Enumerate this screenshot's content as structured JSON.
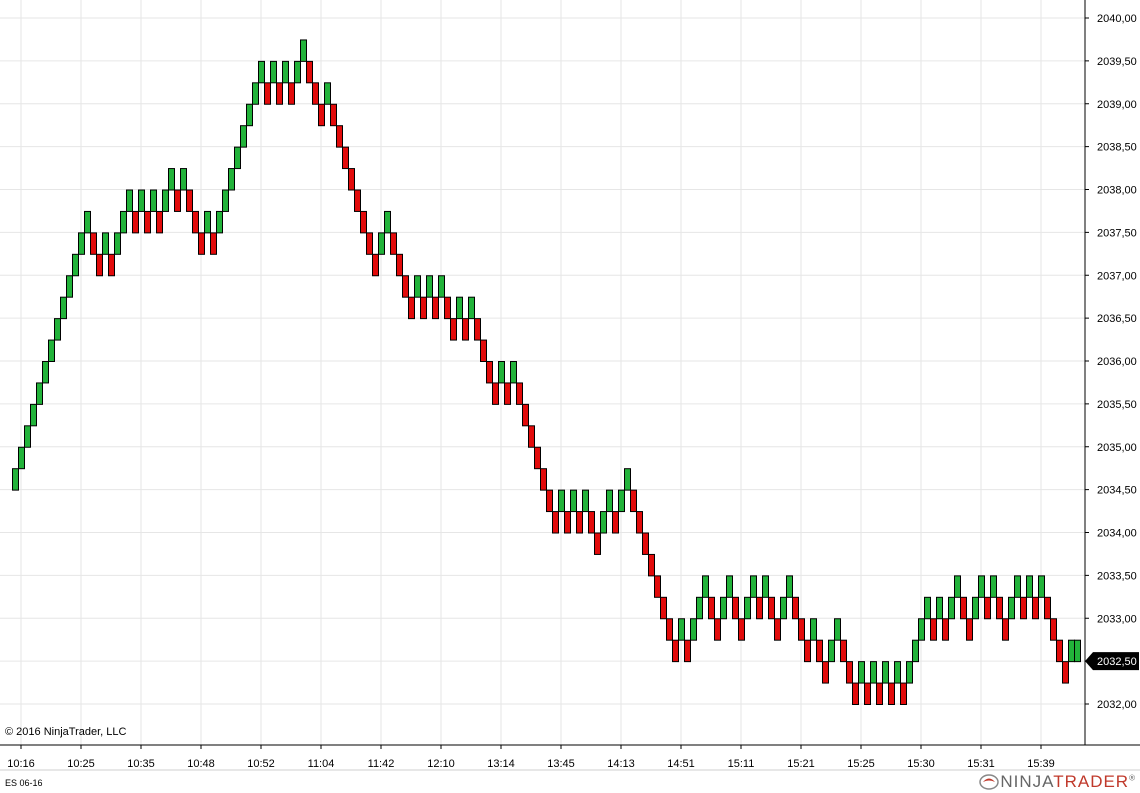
{
  "chart_data": {
    "type": "renko",
    "instrument": "ES 06-16",
    "box_size": 0.25,
    "ylim": [
      2031.75,
      2040.1
    ],
    "y_ticks": [
      "2032,00",
      "2032,50",
      "2033,00",
      "2033,50",
      "2034,00",
      "2034,50",
      "2035,00",
      "2035,50",
      "2036,00",
      "2036,50",
      "2037,00",
      "2037,50",
      "2038,00",
      "2038,50",
      "2039,00",
      "2039,50",
      "2040,00"
    ],
    "y_tick_values": [
      2032.0,
      2032.5,
      2033.0,
      2033.5,
      2034.0,
      2034.5,
      2035.0,
      2035.5,
      2036.0,
      2036.5,
      2037.0,
      2037.5,
      2038.0,
      2038.5,
      2039.0,
      2039.5,
      2040.0
    ],
    "x_labels": [
      {
        "label": "10:16",
        "index": 1
      },
      {
        "label": "10:25",
        "index": 11
      },
      {
        "label": "10:35",
        "index": 21
      },
      {
        "label": "10:48",
        "index": 31
      },
      {
        "label": "10:52",
        "index": 41
      },
      {
        "label": "11:04",
        "index": 51
      },
      {
        "label": "11:42",
        "index": 61
      },
      {
        "label": "12:10",
        "index": 71
      },
      {
        "label": "13:14",
        "index": 81
      },
      {
        "label": "13:45",
        "index": 91
      },
      {
        "label": "14:13",
        "index": 101
      },
      {
        "label": "14:51",
        "index": 111
      },
      {
        "label": "15:11",
        "index": 121
      },
      {
        "label": "15:21",
        "index": 131
      },
      {
        "label": "15:25",
        "index": 141
      },
      {
        "label": "15:30",
        "index": 151
      },
      {
        "label": "15:31",
        "index": 161
      },
      {
        "label": "15:39",
        "index": 171
      }
    ],
    "last_price": "2032,50",
    "colors": {
      "up": "#22b33a",
      "down": "#e20b0b",
      "outline": "#000000",
      "grid": "#e6e6e6",
      "price_marker": "#000000"
    },
    "bricks": [
      {
        "low": 2034.5,
        "high": 2034.75
      },
      {
        "low": 2034.75,
        "high": 2035.0
      },
      {
        "low": 2035.0,
        "high": 2035.25
      },
      {
        "low": 2035.25,
        "high": 2035.5
      },
      {
        "low": 2035.5,
        "high": 2035.75
      },
      {
        "low": 2035.75,
        "high": 2036.0
      },
      {
        "low": 2036.0,
        "high": 2036.25
      },
      {
        "low": 2036.25,
        "high": 2036.5
      },
      {
        "low": 2036.5,
        "high": 2036.75
      },
      {
        "low": 2036.75,
        "high": 2037.0
      },
      {
        "low": 2037.0,
        "high": 2037.25
      },
      {
        "low": 2037.25,
        "high": 2037.5
      },
      {
        "low": 2037.5,
        "high": 2037.75
      },
      {
        "low": 2037.25,
        "high": 2037.5
      },
      {
        "low": 2037.0,
        "high": 2037.25
      },
      {
        "low": 2037.25,
        "high": 2037.5
      },
      {
        "low": 2037.0,
        "high": 2037.25
      },
      {
        "low": 2037.25,
        "high": 2037.5
      },
      {
        "low": 2037.5,
        "high": 2037.75
      },
      {
        "low": 2037.75,
        "high": 2038.0
      },
      {
        "low": 2037.5,
        "high": 2037.75
      },
      {
        "low": 2037.75,
        "high": 2038.0
      },
      {
        "low": 2037.5,
        "high": 2037.75
      },
      {
        "low": 2037.75,
        "high": 2038.0
      },
      {
        "low": 2037.5,
        "high": 2037.75
      },
      {
        "low": 2037.75,
        "high": 2038.0
      },
      {
        "low": 2038.0,
        "high": 2038.25
      },
      {
        "low": 2037.75,
        "high": 2038.0
      },
      {
        "low": 2038.0,
        "high": 2038.25
      },
      {
        "low": 2037.75,
        "high": 2038.0
      },
      {
        "low": 2037.5,
        "high": 2037.75
      },
      {
        "low": 2037.25,
        "high": 2037.5
      },
      {
        "low": 2037.5,
        "high": 2037.75
      },
      {
        "low": 2037.25,
        "high": 2037.5
      },
      {
        "low": 2037.5,
        "high": 2037.75
      },
      {
        "low": 2037.75,
        "high": 2038.0
      },
      {
        "low": 2038.0,
        "high": 2038.25
      },
      {
        "low": 2038.25,
        "high": 2038.5
      },
      {
        "low": 2038.5,
        "high": 2038.75
      },
      {
        "low": 2038.75,
        "high": 2039.0
      },
      {
        "low": 2039.0,
        "high": 2039.25
      },
      {
        "low": 2039.25,
        "high": 2039.5
      },
      {
        "low": 2039.0,
        "high": 2039.25
      },
      {
        "low": 2039.25,
        "high": 2039.5
      },
      {
        "low": 2039.0,
        "high": 2039.25
      },
      {
        "low": 2039.25,
        "high": 2039.5
      },
      {
        "low": 2039.0,
        "high": 2039.25
      },
      {
        "low": 2039.25,
        "high": 2039.5
      },
      {
        "low": 2039.5,
        "high": 2039.75
      },
      {
        "low": 2039.25,
        "high": 2039.5
      },
      {
        "low": 2039.0,
        "high": 2039.25
      },
      {
        "low": 2038.75,
        "high": 2039.0
      },
      {
        "low": 2039.0,
        "high": 2039.25
      },
      {
        "low": 2038.75,
        "high": 2039.0
      },
      {
        "low": 2038.5,
        "high": 2038.75
      },
      {
        "low": 2038.25,
        "high": 2038.5
      },
      {
        "low": 2038.0,
        "high": 2038.25
      },
      {
        "low": 2037.75,
        "high": 2038.0
      },
      {
        "low": 2037.5,
        "high": 2037.75
      },
      {
        "low": 2037.25,
        "high": 2037.5
      },
      {
        "low": 2037.0,
        "high": 2037.25
      },
      {
        "low": 2037.25,
        "high": 2037.5
      },
      {
        "low": 2037.5,
        "high": 2037.75
      },
      {
        "low": 2037.25,
        "high": 2037.5
      },
      {
        "low": 2037.0,
        "high": 2037.25
      },
      {
        "low": 2036.75,
        "high": 2037.0
      },
      {
        "low": 2036.5,
        "high": 2036.75
      },
      {
        "low": 2036.75,
        "high": 2037.0
      },
      {
        "low": 2036.5,
        "high": 2036.75
      },
      {
        "low": 2036.75,
        "high": 2037.0
      },
      {
        "low": 2036.5,
        "high": 2036.75
      },
      {
        "low": 2036.75,
        "high": 2037.0
      },
      {
        "low": 2036.5,
        "high": 2036.75
      },
      {
        "low": 2036.25,
        "high": 2036.5
      },
      {
        "low": 2036.5,
        "high": 2036.75
      },
      {
        "low": 2036.25,
        "high": 2036.5
      },
      {
        "low": 2036.5,
        "high": 2036.75
      },
      {
        "low": 2036.25,
        "high": 2036.5
      },
      {
        "low": 2036.0,
        "high": 2036.25
      },
      {
        "low": 2035.75,
        "high": 2036.0
      },
      {
        "low": 2035.5,
        "high": 2035.75
      },
      {
        "low": 2035.75,
        "high": 2036.0
      },
      {
        "low": 2035.5,
        "high": 2035.75
      },
      {
        "low": 2035.75,
        "high": 2036.0
      },
      {
        "low": 2035.5,
        "high": 2035.75
      },
      {
        "low": 2035.25,
        "high": 2035.5
      },
      {
        "low": 2035.0,
        "high": 2035.25
      },
      {
        "low": 2034.75,
        "high": 2035.0
      },
      {
        "low": 2034.5,
        "high": 2034.75
      },
      {
        "low": 2034.25,
        "high": 2034.5
      },
      {
        "low": 2034.0,
        "high": 2034.25
      },
      {
        "low": 2034.25,
        "high": 2034.5
      },
      {
        "low": 2034.0,
        "high": 2034.25
      },
      {
        "low": 2034.25,
        "high": 2034.5
      },
      {
        "low": 2034.0,
        "high": 2034.25
      },
      {
        "low": 2034.25,
        "high": 2034.5
      },
      {
        "low": 2034.0,
        "high": 2034.25
      },
      {
        "low": 2033.75,
        "high": 2034.0
      },
      {
        "low": 2034.0,
        "high": 2034.25
      },
      {
        "low": 2034.25,
        "high": 2034.5
      },
      {
        "low": 2034.0,
        "high": 2034.25
      },
      {
        "low": 2034.25,
        "high": 2034.5
      },
      {
        "low": 2034.5,
        "high": 2034.75
      },
      {
        "low": 2034.25,
        "high": 2034.5
      },
      {
        "low": 2034.0,
        "high": 2034.25
      },
      {
        "low": 2033.75,
        "high": 2034.0
      },
      {
        "low": 2033.5,
        "high": 2033.75
      },
      {
        "low": 2033.25,
        "high": 2033.5
      },
      {
        "low": 2033.0,
        "high": 2033.25
      },
      {
        "low": 2032.75,
        "high": 2033.0
      },
      {
        "low": 2032.5,
        "high": 2032.75
      },
      {
        "low": 2032.75,
        "high": 2033.0
      },
      {
        "low": 2032.5,
        "high": 2032.75
      },
      {
        "low": 2032.75,
        "high": 2033.0
      },
      {
        "low": 2033.0,
        "high": 2033.25
      },
      {
        "low": 2033.25,
        "high": 2033.5
      },
      {
        "low": 2033.0,
        "high": 2033.25
      },
      {
        "low": 2032.75,
        "high": 2033.0
      },
      {
        "low": 2033.0,
        "high": 2033.25
      },
      {
        "low": 2033.25,
        "high": 2033.5
      },
      {
        "low": 2033.0,
        "high": 2033.25
      },
      {
        "low": 2032.75,
        "high": 2033.0
      },
      {
        "low": 2033.0,
        "high": 2033.25
      },
      {
        "low": 2033.25,
        "high": 2033.5
      },
      {
        "low": 2033.0,
        "high": 2033.25
      },
      {
        "low": 2033.25,
        "high": 2033.5
      },
      {
        "low": 2033.0,
        "high": 2033.25
      },
      {
        "low": 2032.75,
        "high": 2033.0
      },
      {
        "low": 2033.0,
        "high": 2033.25
      },
      {
        "low": 2033.25,
        "high": 2033.5
      },
      {
        "low": 2033.0,
        "high": 2033.25
      },
      {
        "low": 2032.75,
        "high": 2033.0
      },
      {
        "low": 2032.5,
        "high": 2032.75
      },
      {
        "low": 2032.75,
        "high": 2033.0
      },
      {
        "low": 2032.5,
        "high": 2032.75
      },
      {
        "low": 2032.25,
        "high": 2032.5
      },
      {
        "low": 2032.5,
        "high": 2032.75
      },
      {
        "low": 2032.75,
        "high": 2033.0
      },
      {
        "low": 2032.5,
        "high": 2032.75
      },
      {
        "low": 2032.25,
        "high": 2032.5
      },
      {
        "low": 2032.0,
        "high": 2032.25
      },
      {
        "low": 2032.25,
        "high": 2032.5
      },
      {
        "low": 2032.0,
        "high": 2032.25
      },
      {
        "low": 2032.25,
        "high": 2032.5
      },
      {
        "low": 2032.0,
        "high": 2032.25
      },
      {
        "low": 2032.25,
        "high": 2032.5
      },
      {
        "low": 2032.0,
        "high": 2032.25
      },
      {
        "low": 2032.25,
        "high": 2032.5
      },
      {
        "low": 2032.0,
        "high": 2032.25
      },
      {
        "low": 2032.25,
        "high": 2032.5
      },
      {
        "low": 2032.5,
        "high": 2032.75
      },
      {
        "low": 2032.75,
        "high": 2033.0
      },
      {
        "low": 2033.0,
        "high": 2033.25
      },
      {
        "low": 2032.75,
        "high": 2033.0
      },
      {
        "low": 2033.0,
        "high": 2033.25
      },
      {
        "low": 2032.75,
        "high": 2033.0
      },
      {
        "low": 2033.0,
        "high": 2033.25
      },
      {
        "low": 2033.25,
        "high": 2033.5
      },
      {
        "low": 2033.0,
        "high": 2033.25
      },
      {
        "low": 2032.75,
        "high": 2033.0
      },
      {
        "low": 2033.0,
        "high": 2033.25
      },
      {
        "low": 2033.25,
        "high": 2033.5
      },
      {
        "low": 2033.0,
        "high": 2033.25
      },
      {
        "low": 2033.25,
        "high": 2033.5
      },
      {
        "low": 2033.0,
        "high": 2033.25
      },
      {
        "low": 2032.75,
        "high": 2033.0
      },
      {
        "low": 2033.0,
        "high": 2033.25
      },
      {
        "low": 2033.25,
        "high": 2033.5
      },
      {
        "low": 2033.0,
        "high": 2033.25
      },
      {
        "low": 2033.25,
        "high": 2033.5
      },
      {
        "low": 2033.0,
        "high": 2033.25
      },
      {
        "low": 2033.25,
        "high": 2033.5
      },
      {
        "low": 2033.0,
        "high": 2033.25
      },
      {
        "low": 2032.75,
        "high": 2033.0
      },
      {
        "low": 2032.5,
        "high": 2032.75
      },
      {
        "low": 2032.25,
        "high": 2032.5
      },
      {
        "low": 2032.5,
        "high": 2032.75
      },
      {
        "low": 2032.5,
        "high": 2032.75
      }
    ]
  },
  "footer": {
    "copyright": "© 2016 NinjaTrader, LLC",
    "instrument_label": "ES 06-16",
    "brand_prefix": "NINJA",
    "brand_suffix": "TRADER",
    "brand_mark": "®"
  }
}
